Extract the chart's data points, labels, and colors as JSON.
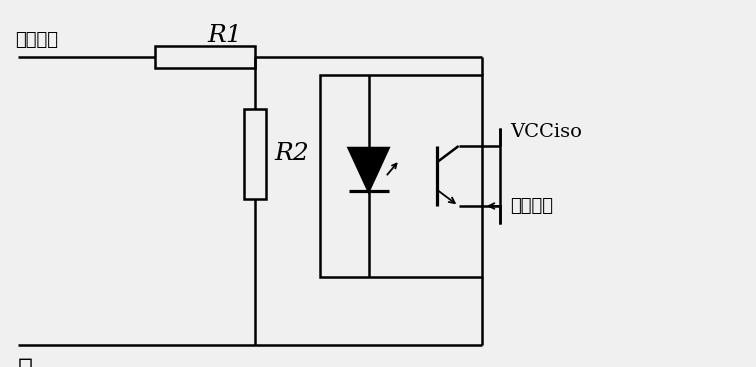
{
  "bg_color": "#f0f0f0",
  "line_color": "#000000",
  "line_width": 1.8,
  "labels": {
    "input": "输入信号",
    "R1": "R1",
    "R2": "R2",
    "ground": "地",
    "VCCiso": "VCCiso",
    "output": "输出信号"
  },
  "figsize": [
    7.56,
    3.67
  ],
  "dpi": 100
}
